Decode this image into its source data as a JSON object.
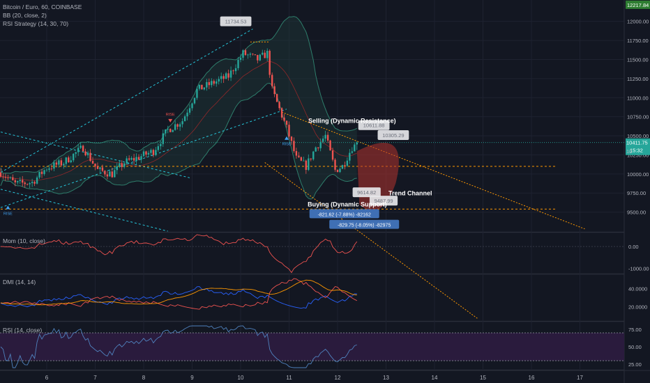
{
  "header": {
    "symbol": "Bitcoin / Euro, 60, COINBASE",
    "bb": "BB (20, close, 2)",
    "rsi_strategy": "RSI Strategy (14, 30, 70)"
  },
  "panes": {
    "mom_label": "Mom (10, close)",
    "dmi_label": "DMI (14, 14)",
    "rsi_label": "RSI (14, close)"
  },
  "colors": {
    "background": "#131722",
    "grid": "#1e2230",
    "up": "#26a69a",
    "down": "#ef5350",
    "channel": "#26c6da",
    "resistance": "#ff9800",
    "projection_fill": "#b2332e",
    "rsi_band": "#2a1b3d",
    "momentum": "#ef5350",
    "dmi_plus": "#2962ff",
    "dmi_minus": "#ef5350",
    "adx": "#ff9800",
    "rsi_line": "#4f81bd"
  },
  "chart_data": [
    {
      "type": "candlestick",
      "title": "Bitcoin / Euro, 60, COINBASE",
      "x_tick_labels": [
        "6",
        "7",
        "8",
        "9",
        "10",
        "11",
        "12",
        "13",
        "14",
        "15",
        "16",
        "17"
      ],
      "x_ticks_day": [
        6,
        7,
        8,
        9,
        10,
        11,
        12,
        13,
        14,
        15,
        16,
        17
      ],
      "y_tick_labels": [
        "9500.00",
        "9750.00",
        "10000.00",
        "10250.00",
        "10500.00",
        "10750.00",
        "11000.00",
        "11250.00",
        "11500.00",
        "11750.00",
        "12000.00"
      ],
      "ylim": [
        9250,
        12280
      ],
      "xlim_day": [
        5.05,
        17.55
      ],
      "price_tag_top": "12217.84",
      "last_price": "10411.75",
      "countdown": "15:32",
      "partial_label": "10",
      "close_anchors": [
        {
          "day": 5.05,
          "close": 10020
        },
        {
          "day": 5.35,
          "close": 9870
        },
        {
          "day": 5.7,
          "close": 9890
        },
        {
          "day": 6.0,
          "close": 10080
        },
        {
          "day": 6.35,
          "close": 10150
        },
        {
          "day": 6.75,
          "close": 10350
        },
        {
          "day": 7.05,
          "close": 10050
        },
        {
          "day": 7.35,
          "close": 10000
        },
        {
          "day": 7.6,
          "close": 10150
        },
        {
          "day": 7.9,
          "close": 10220
        },
        {
          "day": 8.2,
          "close": 10300
        },
        {
          "day": 8.5,
          "close": 10580
        },
        {
          "day": 8.8,
          "close": 10700
        },
        {
          "day": 9.1,
          "close": 11100
        },
        {
          "day": 9.45,
          "close": 11200
        },
        {
          "day": 9.75,
          "close": 11280
        },
        {
          "day": 10.05,
          "close": 11580
        },
        {
          "day": 10.35,
          "close": 11500
        },
        {
          "day": 10.55,
          "close": 11580
        },
        {
          "day": 10.65,
          "close": 11100
        },
        {
          "day": 10.8,
          "close": 10850
        },
        {
          "day": 10.95,
          "close": 10600
        },
        {
          "day": 11.15,
          "close": 10200
        },
        {
          "day": 11.35,
          "close": 10100
        },
        {
          "day": 11.55,
          "close": 10350
        },
        {
          "day": 11.75,
          "close": 10500
        },
        {
          "day": 11.95,
          "close": 10050
        },
        {
          "day": 12.1,
          "close": 10100
        },
        {
          "day": 12.3,
          "close": 10350
        },
        {
          "day": 12.45,
          "close": 10411.75
        }
      ],
      "annotations": [
        {
          "kind": "price_label",
          "text": "11734.53",
          "day": 9.9,
          "price": 12000
        },
        {
          "kind": "price_label",
          "text": "10611.88",
          "day": 12.75,
          "price": 10640
        },
        {
          "kind": "price_label",
          "text": "10305.29",
          "day": 13.15,
          "price": 10510
        },
        {
          "kind": "price_label",
          "text": "9614.82",
          "day": 12.6,
          "price": 9760
        },
        {
          "kind": "price_label",
          "text": "9487.99",
          "day": 12.95,
          "price": 9650
        },
        {
          "kind": "text",
          "text": "Selling (Dynamic Resistance)",
          "day": 12.3,
          "price": 10670
        },
        {
          "kind": "text",
          "text": "Buying (Dynamic Support)",
          "day": 12.2,
          "price": 9575
        },
        {
          "kind": "text",
          "text": "Trend Channel",
          "day": 13.5,
          "price": 9720
        },
        {
          "kind": "measure",
          "text": "-821.62 (-7.88%) -82162",
          "day": 12.14,
          "price": 9475
        },
        {
          "kind": "measure",
          "text": "-829.75 (-8.05%) -82975",
          "day": 12.55,
          "price": 9335
        }
      ],
      "signals": [
        {
          "text": "RISE",
          "day": 8.55,
          "price": 10830,
          "dir": "down"
        },
        {
          "text": "RISE",
          "day": 5.2,
          "price": 9520,
          "dir": "up"
        },
        {
          "text": "RISE",
          "day": 10.95,
          "price": 10430,
          "dir": "up"
        }
      ]
    },
    {
      "type": "line",
      "title": "Mom (10, close)",
      "y_tick_labels": [
        "0.00",
        "-1000.00"
      ],
      "ylim": [
        -1200,
        600
      ]
    },
    {
      "type": "line",
      "title": "DMI (14, 14)",
      "y_tick_labels": [
        "40.0000",
        "20.0000"
      ],
      "ylim": [
        5,
        55
      ]
    },
    {
      "type": "line",
      "title": "RSI (14, close)",
      "y_tick_labels": [
        "75.00",
        "50.00",
        "25.00"
      ],
      "ylim": [
        18,
        85
      ],
      "band": [
        30,
        70
      ]
    }
  ]
}
